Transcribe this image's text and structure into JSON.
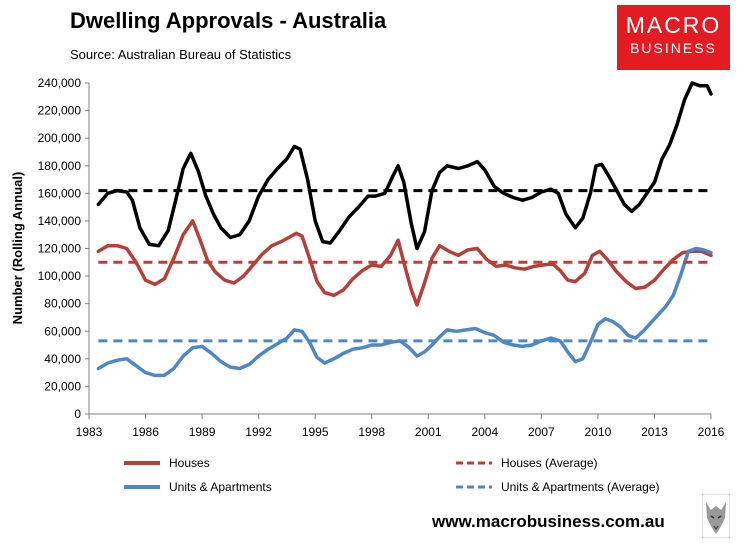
{
  "title": "Dwelling Approvals - Australia",
  "subtitle": "Source: Australian Bureau of Statistics",
  "logo": {
    "line1": "MACRO",
    "line2": "BUSINESS"
  },
  "website": "www.macrobusiness.com.au",
  "colors": {
    "total": "#000000",
    "houses": "#b5403a",
    "units": "#4f86c6",
    "logo_bg": "#e31b23"
  },
  "chart_data": {
    "type": "line",
    "title": "Dwelling Approvals - Australia",
    "xlabel": "",
    "ylabel": "Number (Rolling Annual)",
    "xlim": [
      1983,
      2016
    ],
    "ylim": [
      0,
      240000
    ],
    "x_ticks": [
      "1983",
      "1986",
      "1989",
      "1992",
      "1995",
      "1998",
      "2001",
      "2004",
      "2007",
      "2010",
      "2013",
      "2016"
    ],
    "y_ticks": [
      "0",
      "20,000",
      "40,000",
      "60,000",
      "80,000",
      "100,000",
      "120,000",
      "140,000",
      "160,000",
      "180,000",
      "200,000",
      "220,000",
      "240,000"
    ],
    "series": [
      {
        "name": "Total",
        "style": "solid",
        "color": "#000000",
        "legend": false,
        "points": [
          [
            1983.5,
            152000
          ],
          [
            1984.0,
            160000
          ],
          [
            1984.5,
            162000
          ],
          [
            1985.0,
            161000
          ],
          [
            1985.3,
            155000
          ],
          [
            1985.7,
            135000
          ],
          [
            1986.2,
            123000
          ],
          [
            1986.7,
            122000
          ],
          [
            1987.2,
            133000
          ],
          [
            1987.6,
            155000
          ],
          [
            1988.0,
            178000
          ],
          [
            1988.4,
            189000
          ],
          [
            1988.8,
            176000
          ],
          [
            1989.2,
            158000
          ],
          [
            1989.6,
            145000
          ],
          [
            1990.0,
            135000
          ],
          [
            1990.5,
            128000
          ],
          [
            1991.0,
            130000
          ],
          [
            1991.5,
            140000
          ],
          [
            1992.0,
            158000
          ],
          [
            1992.5,
            170000
          ],
          [
            1993.0,
            178000
          ],
          [
            1993.5,
            185000
          ],
          [
            1993.9,
            194000
          ],
          [
            1994.2,
            192000
          ],
          [
            1994.6,
            170000
          ],
          [
            1995.0,
            140000
          ],
          [
            1995.4,
            125000
          ],
          [
            1995.8,
            124000
          ],
          [
            1996.3,
            133000
          ],
          [
            1996.8,
            143000
          ],
          [
            1997.3,
            150000
          ],
          [
            1997.8,
            158000
          ],
          [
            1998.2,
            158000
          ],
          [
            1998.7,
            160000
          ],
          [
            1999.1,
            172000
          ],
          [
            1999.4,
            180000
          ],
          [
            1999.7,
            168000
          ],
          [
            2000.1,
            138000
          ],
          [
            2000.4,
            120000
          ],
          [
            2000.8,
            132000
          ],
          [
            2001.2,
            162000
          ],
          [
            2001.6,
            175000
          ],
          [
            2002.0,
            180000
          ],
          [
            2002.6,
            178000
          ],
          [
            2003.1,
            180000
          ],
          [
            2003.6,
            183000
          ],
          [
            2004.0,
            177000
          ],
          [
            2004.5,
            165000
          ],
          [
            2005.0,
            160000
          ],
          [
            2005.5,
            157000
          ],
          [
            2006.0,
            155000
          ],
          [
            2006.5,
            157000
          ],
          [
            2007.0,
            161000
          ],
          [
            2007.5,
            163000
          ],
          [
            2007.9,
            160000
          ],
          [
            2008.3,
            145000
          ],
          [
            2008.8,
            135000
          ],
          [
            2009.2,
            142000
          ],
          [
            2009.6,
            160000
          ],
          [
            2009.9,
            180000
          ],
          [
            2010.2,
            181000
          ],
          [
            2010.6,
            172000
          ],
          [
            2011.0,
            162000
          ],
          [
            2011.4,
            152000
          ],
          [
            2011.8,
            147000
          ],
          [
            2012.2,
            152000
          ],
          [
            2012.6,
            160000
          ],
          [
            2013.0,
            168000
          ],
          [
            2013.4,
            185000
          ],
          [
            2013.8,
            195000
          ],
          [
            2014.2,
            210000
          ],
          [
            2014.6,
            228000
          ],
          [
            2015.0,
            240000
          ],
          [
            2015.4,
            238000
          ],
          [
            2015.8,
            238000
          ],
          [
            2016.0,
            232000
          ]
        ]
      },
      {
        "name": "Houses",
        "style": "solid",
        "color": "#b5403a",
        "legend": true,
        "points": [
          [
            1983.5,
            118000
          ],
          [
            1984.0,
            122000
          ],
          [
            1984.5,
            122000
          ],
          [
            1985.0,
            120000
          ],
          [
            1985.5,
            110000
          ],
          [
            1986.0,
            97000
          ],
          [
            1986.5,
            94000
          ],
          [
            1987.0,
            98000
          ],
          [
            1987.5,
            113000
          ],
          [
            1988.0,
            130000
          ],
          [
            1988.5,
            140000
          ],
          [
            1988.9,
            126000
          ],
          [
            1989.3,
            111000
          ],
          [
            1989.7,
            103000
          ],
          [
            1990.2,
            97000
          ],
          [
            1990.7,
            95000
          ],
          [
            1991.2,
            100000
          ],
          [
            1991.7,
            108000
          ],
          [
            1992.2,
            116000
          ],
          [
            1992.7,
            122000
          ],
          [
            1993.2,
            125000
          ],
          [
            1993.6,
            128000
          ],
          [
            1994.0,
            131000
          ],
          [
            1994.3,
            129000
          ],
          [
            1994.7,
            113000
          ],
          [
            1995.1,
            96000
          ],
          [
            1995.5,
            88000
          ],
          [
            1996.0,
            86000
          ],
          [
            1996.5,
            90000
          ],
          [
            1997.0,
            98000
          ],
          [
            1997.5,
            104000
          ],
          [
            1998.0,
            108000
          ],
          [
            1998.5,
            107000
          ],
          [
            1999.0,
            115000
          ],
          [
            1999.4,
            126000
          ],
          [
            1999.7,
            110000
          ],
          [
            2000.1,
            90000
          ],
          [
            2000.4,
            79000
          ],
          [
            2000.8,
            95000
          ],
          [
            2001.2,
            113000
          ],
          [
            2001.6,
            122000
          ],
          [
            2002.1,
            118000
          ],
          [
            2002.6,
            115000
          ],
          [
            2003.1,
            119000
          ],
          [
            2003.6,
            120000
          ],
          [
            2004.1,
            112000
          ],
          [
            2004.6,
            107000
          ],
          [
            2005.1,
            108000
          ],
          [
            2005.6,
            106000
          ],
          [
            2006.1,
            105000
          ],
          [
            2006.6,
            107000
          ],
          [
            2007.1,
            108000
          ],
          [
            2007.6,
            109000
          ],
          [
            2008.0,
            104000
          ],
          [
            2008.4,
            97000
          ],
          [
            2008.8,
            96000
          ],
          [
            2009.3,
            102000
          ],
          [
            2009.7,
            115000
          ],
          [
            2010.1,
            118000
          ],
          [
            2010.5,
            112000
          ],
          [
            2011.0,
            103000
          ],
          [
            2011.5,
            96000
          ],
          [
            2012.0,
            91000
          ],
          [
            2012.5,
            92000
          ],
          [
            2013.0,
            97000
          ],
          [
            2013.5,
            105000
          ],
          [
            2014.0,
            112000
          ],
          [
            2014.5,
            117000
          ],
          [
            2015.0,
            118000
          ],
          [
            2015.5,
            118000
          ],
          [
            2016.0,
            115000
          ]
        ]
      },
      {
        "name": "Units & Apartments",
        "style": "solid",
        "color": "#4f86c6",
        "legend": true,
        "points": [
          [
            1983.5,
            33000
          ],
          [
            1984.0,
            37000
          ],
          [
            1984.5,
            39000
          ],
          [
            1985.0,
            40000
          ],
          [
            1985.5,
            35000
          ],
          [
            1986.0,
            30000
          ],
          [
            1986.5,
            28000
          ],
          [
            1987.0,
            28000
          ],
          [
            1987.5,
            33000
          ],
          [
            1988.0,
            42000
          ],
          [
            1988.5,
            48000
          ],
          [
            1989.0,
            49000
          ],
          [
            1989.5,
            44000
          ],
          [
            1990.0,
            38000
          ],
          [
            1990.5,
            34000
          ],
          [
            1991.0,
            33000
          ],
          [
            1991.5,
            36000
          ],
          [
            1992.0,
            42000
          ],
          [
            1992.5,
            47000
          ],
          [
            1993.0,
            51000
          ],
          [
            1993.5,
            55000
          ],
          [
            1993.9,
            61000
          ],
          [
            1994.3,
            60000
          ],
          [
            1994.7,
            52000
          ],
          [
            1995.1,
            41000
          ],
          [
            1995.5,
            37000
          ],
          [
            1996.0,
            40000
          ],
          [
            1996.5,
            44000
          ],
          [
            1997.0,
            47000
          ],
          [
            1997.5,
            48000
          ],
          [
            1998.0,
            50000
          ],
          [
            1998.5,
            50000
          ],
          [
            1999.0,
            52000
          ],
          [
            1999.5,
            53000
          ],
          [
            2000.0,
            48000
          ],
          [
            2000.4,
            42000
          ],
          [
            2000.8,
            45000
          ],
          [
            2001.2,
            50000
          ],
          [
            2001.6,
            56000
          ],
          [
            2002.0,
            61000
          ],
          [
            2002.5,
            60000
          ],
          [
            2003.0,
            61000
          ],
          [
            2003.5,
            62000
          ],
          [
            2004.0,
            59000
          ],
          [
            2004.5,
            57000
          ],
          [
            2005.0,
            52000
          ],
          [
            2005.5,
            50000
          ],
          [
            2006.0,
            49000
          ],
          [
            2006.5,
            50000
          ],
          [
            2007.0,
            53000
          ],
          [
            2007.5,
            55000
          ],
          [
            2008.0,
            53000
          ],
          [
            2008.4,
            45000
          ],
          [
            2008.8,
            38000
          ],
          [
            2009.2,
            40000
          ],
          [
            2009.6,
            52000
          ],
          [
            2010.0,
            65000
          ],
          [
            2010.4,
            69000
          ],
          [
            2010.8,
            67000
          ],
          [
            2011.2,
            63000
          ],
          [
            2011.6,
            57000
          ],
          [
            2012.0,
            55000
          ],
          [
            2012.4,
            60000
          ],
          [
            2012.8,
            66000
          ],
          [
            2013.2,
            72000
          ],
          [
            2013.6,
            78000
          ],
          [
            2014.0,
            86000
          ],
          [
            2014.4,
            101000
          ],
          [
            2014.8,
            118000
          ],
          [
            2015.2,
            120000
          ],
          [
            2015.6,
            119000
          ],
          [
            2016.0,
            117000
          ]
        ]
      },
      {
        "name": "Total (Average)",
        "style": "dashed",
        "color": "#000000",
        "legend": false,
        "points": [
          [
            1983.5,
            162000
          ],
          [
            2016.0,
            162000
          ]
        ]
      },
      {
        "name": "Houses (Average)",
        "style": "dashed",
        "color": "#b5403a",
        "legend": true,
        "points": [
          [
            1983.5,
            110000
          ],
          [
            2016.0,
            110000
          ]
        ]
      },
      {
        "name": "Units & Apartments (Average)",
        "style": "dashed",
        "color": "#4f86c6",
        "legend": true,
        "points": [
          [
            1983.5,
            53000
          ],
          [
            2016.0,
            53000
          ]
        ]
      }
    ]
  }
}
